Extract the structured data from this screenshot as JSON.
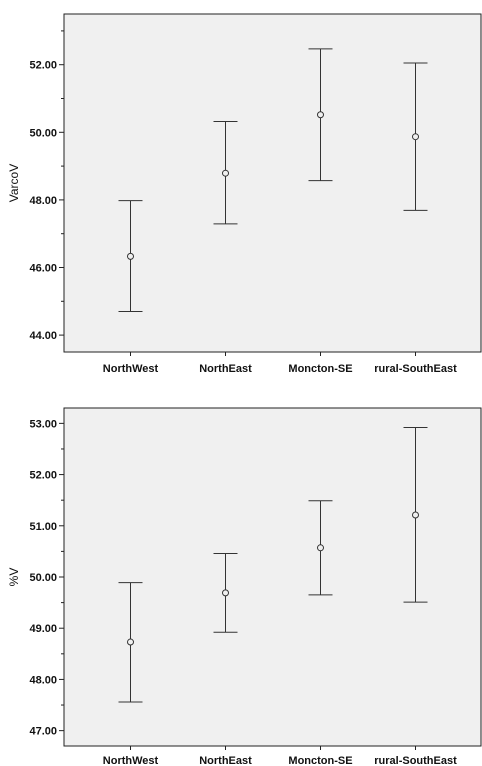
{
  "chart_data": [
    {
      "type": "errorbar",
      "ylabel": "VarcoV",
      "categories": [
        "NorthWest",
        "NorthEast",
        "Moncton-SE",
        "rural-SouthEast"
      ],
      "mean": [
        46.33,
        48.79,
        50.52,
        49.87
      ],
      "lower": [
        44.7,
        47.29,
        48.57,
        47.69
      ],
      "upper": [
        47.98,
        50.32,
        52.47,
        52.05
      ],
      "ylim": [
        43.5,
        53.5
      ],
      "yticks": [
        "44.00",
        "46.00",
        "48.00",
        "50.00",
        "52.00"
      ],
      "ytick_values": [
        44,
        46,
        48,
        50,
        52
      ],
      "grid": false
    },
    {
      "type": "errorbar",
      "ylabel": "%V",
      "categories": [
        "NorthWest",
        "NorthEast",
        "Moncton-SE",
        "rural-SouthEast"
      ],
      "mean": [
        48.73,
        49.69,
        50.57,
        51.21
      ],
      "lower": [
        47.56,
        48.92,
        49.65,
        49.51
      ],
      "upper": [
        49.89,
        50.46,
        51.49,
        52.92
      ],
      "ylim": [
        46.7,
        53.3
      ],
      "yticks": [
        "47.00",
        "48.00",
        "49.00",
        "50.00",
        "51.00",
        "52.00",
        "53.00"
      ],
      "ytick_values": [
        47,
        48,
        49,
        50,
        51,
        52,
        53
      ],
      "grid": false
    }
  ]
}
